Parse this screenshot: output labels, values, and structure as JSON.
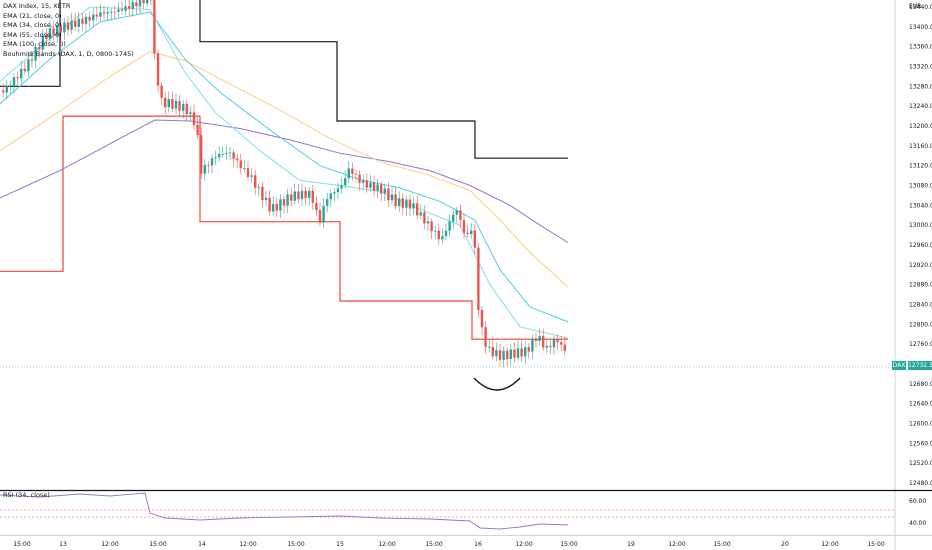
{
  "legend": {
    "symbol": "DAX Index, 15, XETR",
    "ema21": "EMA (21, close, 0)",
    "ema34": "EMA (34, close, 0)",
    "ema55": "EMA (55, close, 0)",
    "ema100": "EMA (100, close, 0)",
    "bands": "Bouhmidi Bands (DAX, 1, D, 0800-1745)",
    "rsi": "RSI (34, close)"
  },
  "currency": "EUR",
  "current": {
    "symbol": "DAX",
    "value": "12732.32"
  },
  "colors": {
    "up": "#26a69a",
    "down": "#ef5350",
    "ema21": "#80deea",
    "ema34": "#4dd0e1",
    "ema55": "#ffcc80",
    "ema100": "#9575cd",
    "band_upper": "#131722",
    "band_lower": "#f44336",
    "rsi": "#9575cd"
  },
  "chart_data": {
    "type": "candlestick",
    "y_ticks": [
      "13440.00",
      "13400.00",
      "13360.00",
      "13320.00",
      "13280.00",
      "13240.00",
      "13200.00",
      "13160.00",
      "13120.00",
      "13080.00",
      "13040.00",
      "13000.00",
      "12960.00",
      "12920.00",
      "12880.00",
      "12840.00",
      "12800.00",
      "12760.00",
      "12720.00",
      "12680.00",
      "12640.00",
      "12600.00",
      "12560.00",
      "12520.00",
      "12480.00"
    ],
    "x_ticks": [
      "15:00",
      "13",
      "12:00",
      "15:00",
      "14",
      "12:00",
      "15:00",
      "15",
      "12:00",
      "15:00",
      "16",
      "12:00",
      "15:00",
      "19",
      "12:00",
      "15:00",
      "20",
      "12:00",
      "15:00"
    ],
    "rsi_ticks": [
      "60.00",
      "40.00"
    ],
    "ylim": [
      12470,
      13470
    ],
    "upper_band": [
      [
        0,
        13280
      ],
      [
        60,
        13280
      ],
      [
        60,
        13500
      ],
      [
        200,
        13500
      ],
      [
        200,
        13370
      ],
      [
        337,
        13370
      ],
      [
        337,
        13210
      ],
      [
        475,
        13210
      ],
      [
        475,
        13135
      ],
      [
        568,
        13135
      ]
    ],
    "lower_band": [
      [
        0,
        12907
      ],
      [
        63,
        12907
      ],
      [
        63,
        13220
      ],
      [
        200,
        13220
      ],
      [
        200,
        13007
      ],
      [
        340,
        13007
      ],
      [
        340,
        12847
      ],
      [
        472,
        12847
      ],
      [
        472,
        12770
      ],
      [
        568,
        12770
      ]
    ]
  }
}
